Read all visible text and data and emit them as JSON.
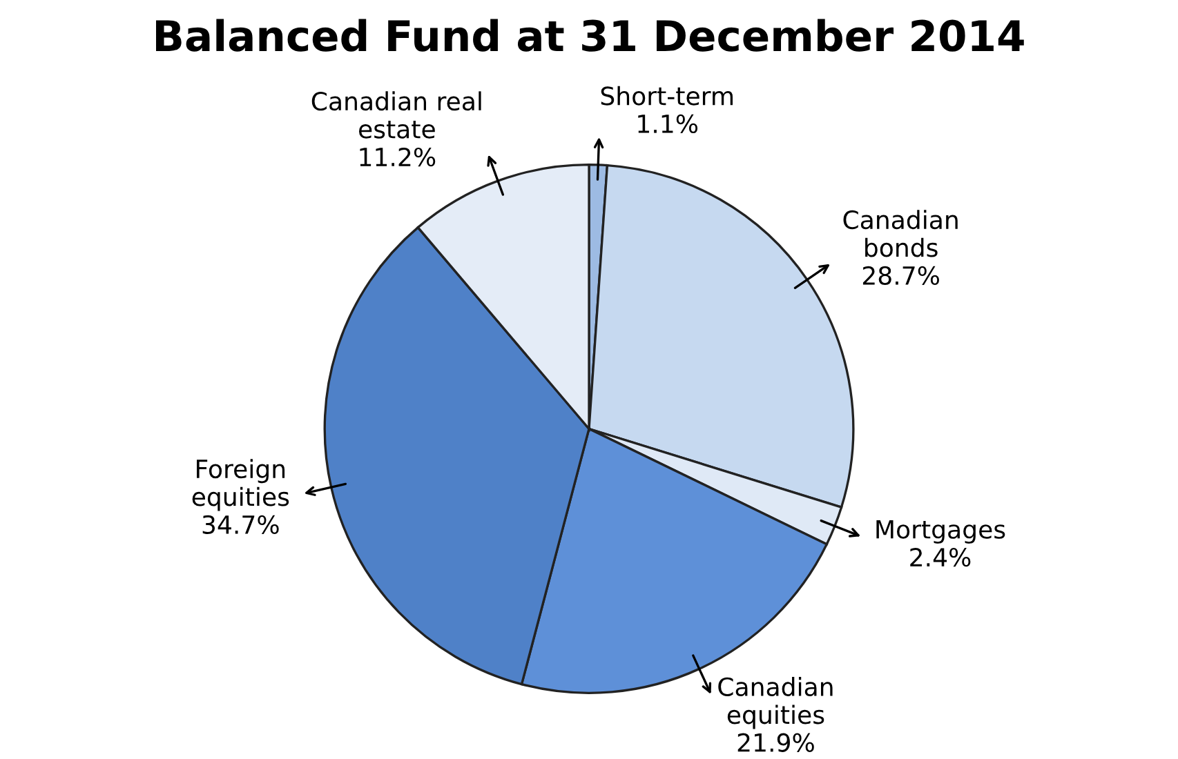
{
  "chart_data": {
    "type": "pie",
    "title": "Balanced Fund at 31 December 2014",
    "categories": [
      "Short-term",
      "Canadian\nbonds",
      "Mortgages",
      "Canadian\nequities",
      "Foreign\nequities",
      "Canadian real\nestate"
    ],
    "values": [
      1.1,
      28.7,
      2.4,
      21.9,
      34.7,
      11.2
    ],
    "value_labels": [
      "1.1%",
      "28.7%",
      "2.4%",
      "21.9%",
      "34.7%",
      "11.2%"
    ],
    "colors": [
      "#9dbbe3",
      "#c6d9f0",
      "#dfe9f6",
      "#5e90d8",
      "#4f81c8",
      "#e4ecf7"
    ],
    "legend": false
  }
}
